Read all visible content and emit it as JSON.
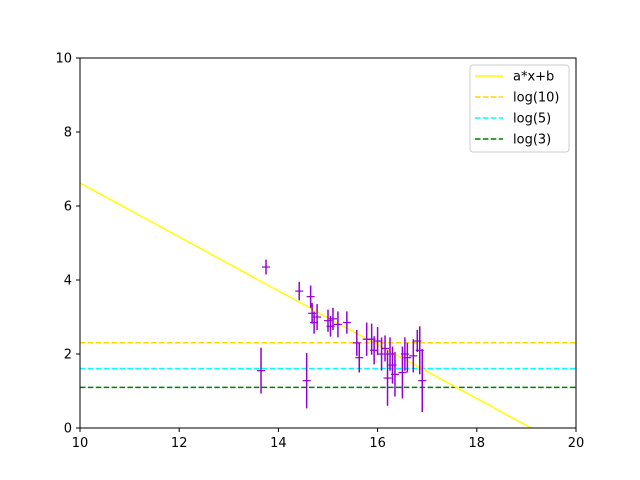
{
  "chart_data": {
    "type": "scatter",
    "title": "",
    "xlabel": "",
    "ylabel": "",
    "xlim": [
      10,
      20
    ],
    "ylim": [
      0,
      10
    ],
    "xticks": [
      "10",
      "12",
      "14",
      "16",
      "18",
      "20"
    ],
    "yticks": [
      "0",
      "2",
      "4",
      "6",
      "8",
      "10"
    ],
    "legend_position": "top-right",
    "grid": false,
    "colors": {
      "points": "#9400d3",
      "fit_line": "#ffff00",
      "log10": "#ffd700",
      "log5": "#00ffff",
      "log3": "#008000"
    },
    "fit_line": {
      "name": "a*x+b",
      "x": [
        10,
        20
      ],
      "y": [
        6.62,
        -0.66
      ]
    },
    "hlines": [
      {
        "name": "log(10)",
        "y": 2.303,
        "color": "#ffd700"
      },
      {
        "name": "log(5)",
        "y": 1.609,
        "color": "#00ffff"
      },
      {
        "name": "log(3)",
        "y": 1.099,
        "color": "#008000"
      }
    ],
    "points": [
      {
        "x": 13.65,
        "y": 1.55,
        "yerr": 0.62
      },
      {
        "x": 13.75,
        "y": 4.35,
        "yerr": 0.2
      },
      {
        "x": 14.42,
        "y": 3.7,
        "yerr": 0.25
      },
      {
        "x": 14.57,
        "y": 1.28,
        "yerr": 0.75
      },
      {
        "x": 14.65,
        "y": 3.55,
        "yerr": 0.3
      },
      {
        "x": 14.68,
        "y": 3.1,
        "yerr": 0.28
      },
      {
        "x": 14.72,
        "y": 2.85,
        "yerr": 0.3
      },
      {
        "x": 14.78,
        "y": 3.0,
        "yerr": 0.35
      },
      {
        "x": 15.0,
        "y": 2.9,
        "yerr": 0.3
      },
      {
        "x": 15.05,
        "y": 2.75,
        "yerr": 0.28
      },
      {
        "x": 15.1,
        "y": 2.95,
        "yerr": 0.3
      },
      {
        "x": 15.2,
        "y": 2.8,
        "yerr": 0.35
      },
      {
        "x": 15.38,
        "y": 2.85,
        "yerr": 0.3
      },
      {
        "x": 15.58,
        "y": 2.3,
        "yerr": 0.35
      },
      {
        "x": 15.63,
        "y": 1.9,
        "yerr": 0.4
      },
      {
        "x": 15.78,
        "y": 2.4,
        "yerr": 0.45
      },
      {
        "x": 15.88,
        "y": 2.4,
        "yerr": 0.42
      },
      {
        "x": 15.93,
        "y": 2.1,
        "yerr": 0.38
      },
      {
        "x": 16.0,
        "y": 2.35,
        "yerr": 0.38
      },
      {
        "x": 16.08,
        "y": 2.0,
        "yerr": 0.45
      },
      {
        "x": 16.15,
        "y": 2.15,
        "yerr": 0.35
      },
      {
        "x": 16.2,
        "y": 1.35,
        "yerr": 0.75
      },
      {
        "x": 16.25,
        "y": 2.0,
        "yerr": 0.45
      },
      {
        "x": 16.3,
        "y": 1.7,
        "yerr": 0.5
      },
      {
        "x": 16.35,
        "y": 1.45,
        "yerr": 0.6
      },
      {
        "x": 16.5,
        "y": 1.5,
        "yerr": 0.7
      },
      {
        "x": 16.55,
        "y": 2.0,
        "yerr": 0.45
      },
      {
        "x": 16.6,
        "y": 1.9,
        "yerr": 0.4
      },
      {
        "x": 16.72,
        "y": 1.95,
        "yerr": 0.45
      },
      {
        "x": 16.8,
        "y": 2.35,
        "yerr": 0.3
      },
      {
        "x": 16.85,
        "y": 2.1,
        "yerr": 0.65
      },
      {
        "x": 16.9,
        "y": 1.28,
        "yerr": 0.85
      }
    ]
  }
}
